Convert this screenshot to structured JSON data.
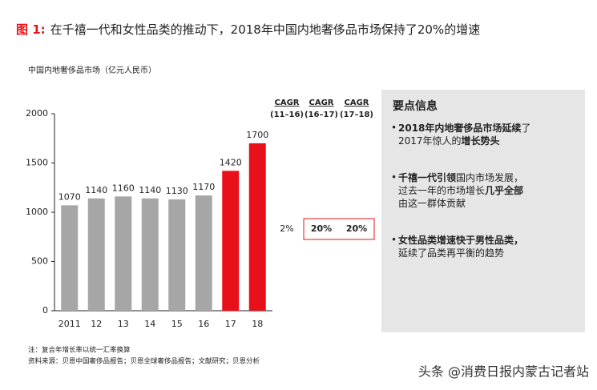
{
  "chart_data": {
    "type": "bar",
    "title_prefix": "图 1:",
    "title": "在千禧一代和女性品类的推动下，2018年中国内地奢侈品市场保持了20%的增速",
    "subtitle": "中国内地奢侈品市场（亿元人民币）",
    "categories": [
      "2011",
      "12",
      "13",
      "14",
      "15",
      "16",
      "17",
      "18"
    ],
    "values": [
      1070,
      1140,
      1160,
      1140,
      1130,
      1170,
      1420,
      1700
    ],
    "colors": [
      "#a6a6a6",
      "#a6a6a6",
      "#a6a6a6",
      "#a6a6a6",
      "#a6a6a6",
      "#a6a6a6",
      "#e8111a",
      "#e8111a"
    ],
    "ylim": [
      0,
      2000
    ],
    "yticks": [
      0,
      500,
      1000,
      1500,
      2000
    ],
    "cagr": {
      "headers": [
        [
          "CAGR",
          "(11–16)"
        ],
        [
          "CAGR",
          "(16–17)"
        ],
        [
          "CAGR",
          "(17–18)"
        ]
      ],
      "values": [
        2,
        20,
        20
      ],
      "value_labels": [
        "2%",
        "20%",
        "20%"
      ],
      "highlight": [
        false,
        true,
        true
      ],
      "highlight_color": "#e8111a"
    },
    "notes": [
      "注：复合年增长率以统一汇率换算",
      "资料来源：贝恩中国奢侈品报告；贝恩全球奢侈品报告；文献研究；贝恩分析"
    ]
  },
  "panel": {
    "title": "要点信息",
    "bullets": [
      [
        [
          {
            "text": "2018年内地奢侈品市场延续",
            "bold": true
          },
          {
            "text": "了",
            "bold": false
          }
        ],
        [
          {
            "text": "2017年惊人的",
            "bold": false
          },
          {
            "text": "增长势头",
            "bold": true
          }
        ]
      ],
      [
        [
          {
            "text": "千禧一代引领",
            "bold": true
          },
          {
            "text": "国内市场发展，",
            "bold": false
          }
        ],
        [
          {
            "text": "过去一年的市场增长",
            "bold": false
          },
          {
            "text": "几乎全部",
            "bold": true
          }
        ],
        [
          {
            "text": "由这一群体贡献",
            "bold": false
          }
        ]
      ],
      [
        [
          {
            "text": "女性品类增速快于男性品类，",
            "bold": true
          }
        ],
        [
          {
            "text": "延续了品类再平衡的趋势",
            "bold": false
          }
        ]
      ]
    ]
  },
  "watermark": "头条 @消费日报内蒙古记者站"
}
